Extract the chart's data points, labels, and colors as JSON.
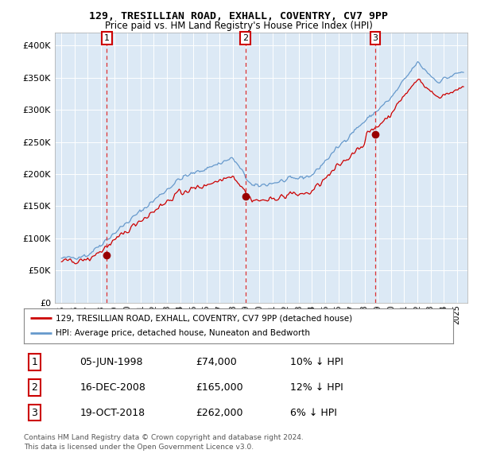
{
  "title": "129, TRESILLIAN ROAD, EXHALL, COVENTRY, CV7 9PP",
  "subtitle": "Price paid vs. HM Land Registry's House Price Index (HPI)",
  "red_label": "129, TRESILLIAN ROAD, EXHALL, COVENTRY, CV7 9PP (detached house)",
  "blue_label": "HPI: Average price, detached house, Nuneaton and Bedworth",
  "transactions": [
    {
      "num": 1,
      "date_str": "05-JUN-1998",
      "price": 74000,
      "hpi_diff": "10% ↓ HPI",
      "year_x": 1998.44
    },
    {
      "num": 2,
      "date_str": "16-DEC-2008",
      "price": 165000,
      "hpi_diff": "12% ↓ HPI",
      "year_x": 2008.96
    },
    {
      "num": 3,
      "date_str": "19-OCT-2018",
      "price": 262000,
      "hpi_diff": "6% ↓ HPI",
      "year_x": 2018.8
    }
  ],
  "ylim": [
    0,
    420000
  ],
  "yticks": [
    0,
    50000,
    100000,
    150000,
    200000,
    250000,
    300000,
    350000,
    400000
  ],
  "ytick_labels": [
    "£0",
    "£50K",
    "£100K",
    "£150K",
    "£200K",
    "£250K",
    "£300K",
    "£350K",
    "£400K"
  ],
  "xlim_start": 1994.5,
  "xlim_end": 2025.8,
  "bg_color": "#dce9f5",
  "grid_color": "#ffffff",
  "red_line_color": "#cc0000",
  "blue_line_color": "#6699cc",
  "dashed_line_color": "#dd3333",
  "marker_color": "#990000",
  "footer_text": "Contains HM Land Registry data © Crown copyright and database right 2024.\nThis data is licensed under the Open Government Licence v3.0."
}
